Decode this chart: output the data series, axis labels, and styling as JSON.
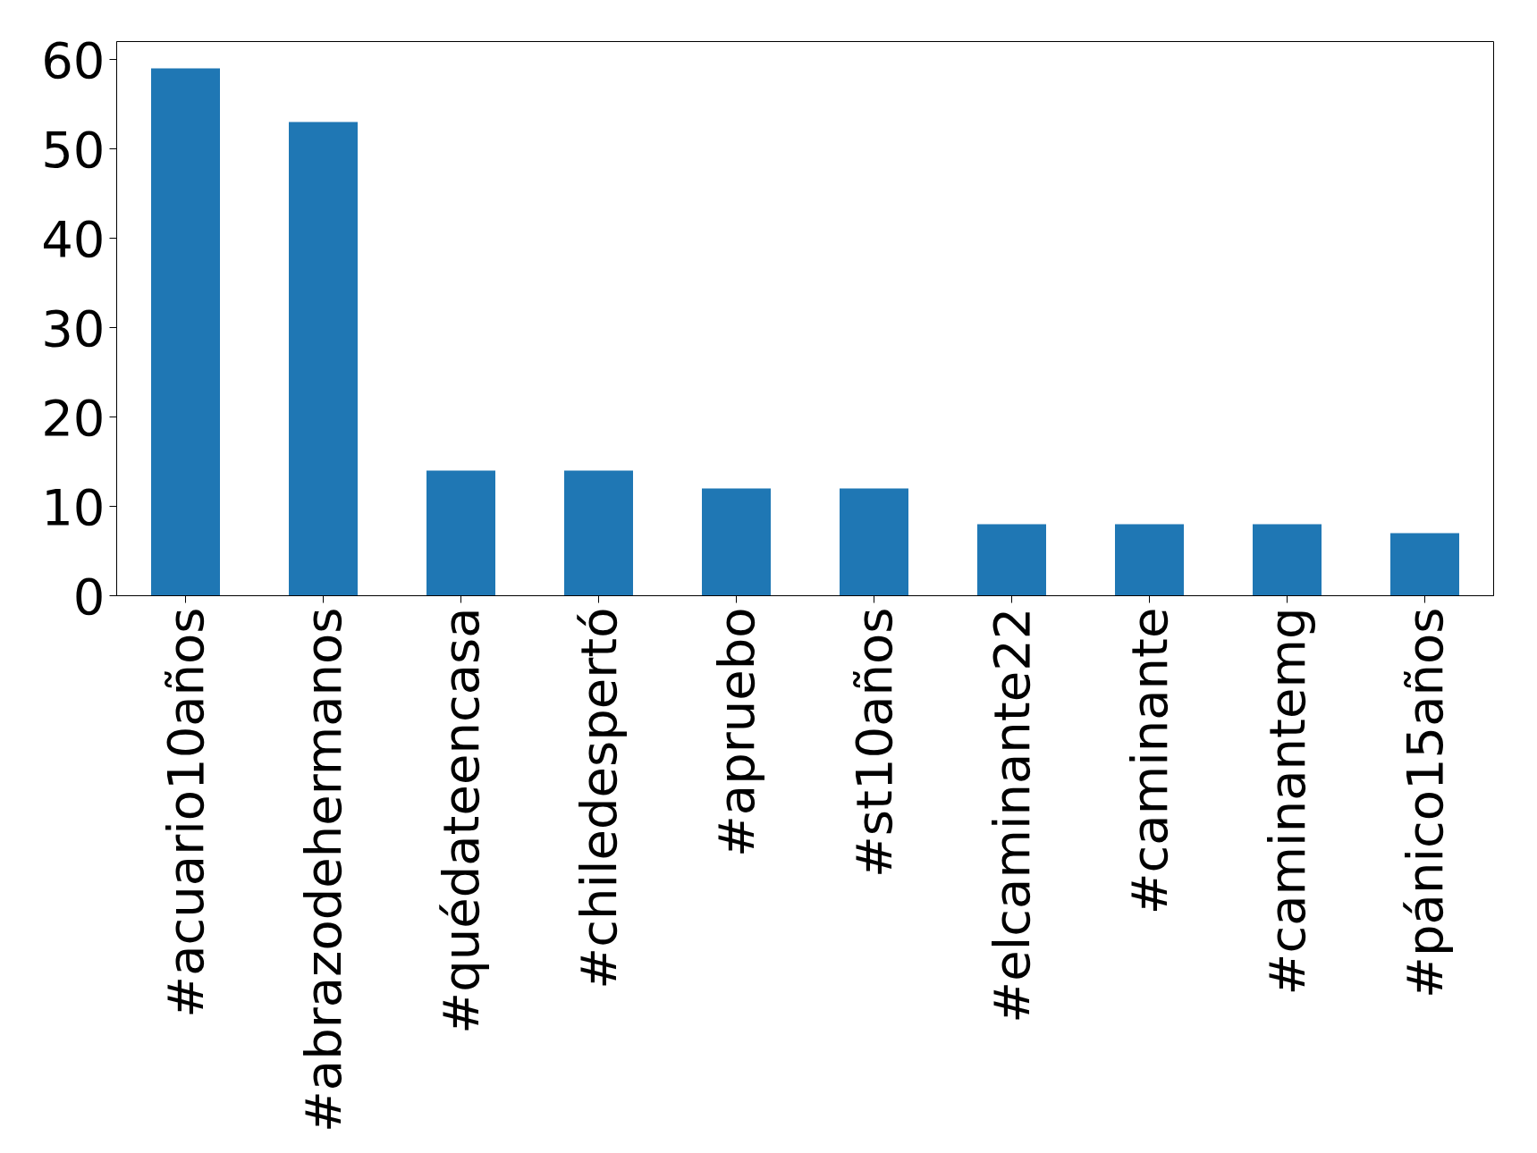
{
  "chart_data": {
    "type": "bar",
    "categories": [
      "#acuario10años",
      "#abrazodehermanos",
      "#quédateencasa",
      "#chiledespertó",
      "#apruebo",
      "#st10años",
      "#elcaminante22",
      "#caminante",
      "#caminantemg",
      "#pánico15años"
    ],
    "values": [
      59,
      53,
      14,
      14,
      12,
      12,
      8,
      8,
      8,
      7
    ],
    "color": "#1f77b4",
    "ylim": [
      0,
      62
    ],
    "yticks": [
      0,
      10,
      20,
      30,
      40,
      50,
      60
    ],
    "grid": false
  }
}
